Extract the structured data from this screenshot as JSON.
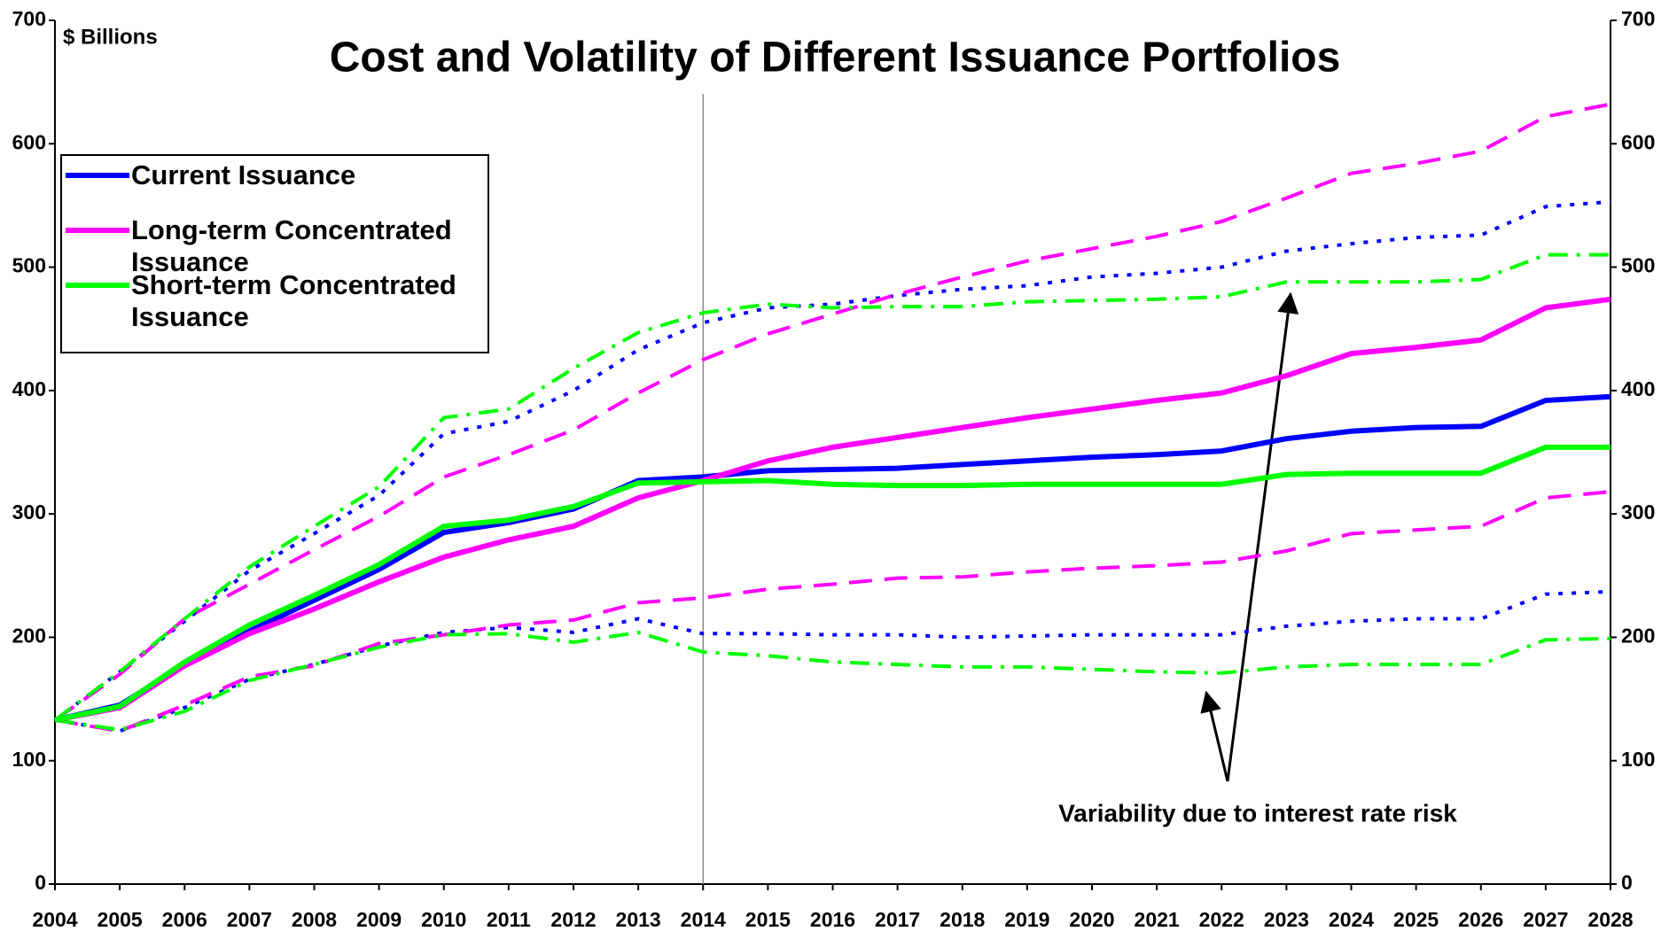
{
  "chart_data": {
    "type": "line",
    "title": "Cost and Volatility of Different Issuance Portfolios",
    "y_label": "$ Billions",
    "annotation": "Variability due to interest rate risk",
    "x": [
      2004,
      2005,
      2006,
      2007,
      2008,
      2009,
      2010,
      2011,
      2012,
      2013,
      2014,
      2015,
      2016,
      2017,
      2018,
      2019,
      2020,
      2021,
      2022,
      2023,
      2024,
      2025,
      2026,
      2027,
      2028
    ],
    "xlim": [
      2004,
      2028
    ],
    "ylim": [
      0,
      700
    ],
    "yticks": [
      0,
      100,
      200,
      300,
      400,
      500,
      600,
      700
    ],
    "y2lim": [
      0,
      700
    ],
    "y2ticks": [
      0,
      100,
      200,
      300,
      400,
      500,
      600,
      700
    ],
    "vline": 2014,
    "legend": "upper left",
    "series": [
      {
        "name": "Current Issuance",
        "color": "#0000ff",
        "values": [
          133,
          145,
          178,
          205,
          230,
          255,
          285,
          293,
          304,
          327,
          330,
          335,
          336,
          337,
          340,
          343,
          346,
          348,
          351,
          361,
          367,
          370,
          371,
          392,
          395
        ],
        "upper": [
          133,
          172,
          213,
          254,
          284,
          315,
          365,
          375,
          400,
          433,
          455,
          467,
          470,
          477,
          482,
          485,
          492,
          495,
          500,
          513,
          519,
          524,
          526,
          549,
          553
        ],
        "lower": [
          133,
          124,
          143,
          166,
          178,
          193,
          204,
          208,
          204,
          215,
          203,
          203,
          202,
          202,
          200,
          201,
          202,
          202,
          202,
          209,
          213,
          215,
          215,
          235,
          237
        ]
      },
      {
        "name": "Long-term Concentrated Issuance",
        "color": "#ff00ff",
        "values": [
          133,
          143,
          177,
          203,
          223,
          245,
          265,
          279,
          290,
          313,
          327,
          343,
          354,
          362,
          370,
          378,
          385,
          392,
          398,
          412,
          430,
          435,
          441,
          467,
          474
        ],
        "upper": [
          133,
          170,
          215,
          243,
          271,
          298,
          330,
          348,
          368,
          398,
          425,
          446,
          462,
          478,
          492,
          505,
          515,
          525,
          537,
          556,
          576,
          584,
          594,
          622,
          632
        ],
        "lower": [
          133,
          124,
          145,
          168,
          177,
          195,
          202,
          210,
          214,
          228,
          232,
          239,
          243,
          248,
          249,
          253,
          256,
          258,
          261,
          270,
          284,
          287,
          290,
          313,
          318
        ]
      },
      {
        "name": "Short-term Concentrated Issuance",
        "color": "#00ff00",
        "values": [
          133,
          144,
          180,
          210,
          234,
          259,
          290,
          295,
          306,
          325,
          326,
          327,
          324,
          323,
          323,
          324,
          324,
          324,
          324,
          332,
          333,
          333,
          333,
          354,
          354
        ],
        "upper": [
          133,
          172,
          215,
          257,
          290,
          322,
          378,
          385,
          418,
          447,
          463,
          470,
          467,
          468,
          468,
          472,
          473,
          474,
          476,
          488,
          488,
          488,
          490,
          510,
          510
        ],
        "lower": [
          133,
          125,
          140,
          165,
          178,
          192,
          202,
          203,
          196,
          204,
          188,
          185,
          180,
          178,
          176,
          176,
          174,
          172,
          171,
          176,
          178,
          178,
          178,
          198,
          199
        ]
      }
    ]
  }
}
